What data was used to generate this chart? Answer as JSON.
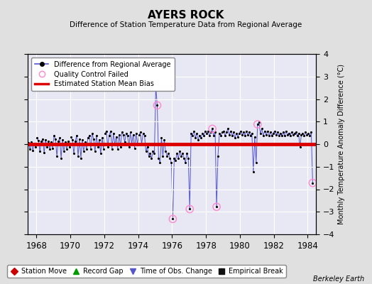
{
  "title": "AYERS ROCK",
  "subtitle": "Difference of Station Temperature Data from Regional Average",
  "ylabel_right": "Monthly Temperature Anomaly Difference (°C)",
  "xlim": [
    1967.5,
    1984.5
  ],
  "ylim": [
    -4,
    4
  ],
  "yticks": [
    -4,
    -3,
    -2,
    -1,
    0,
    1,
    2,
    3,
    4
  ],
  "xticks": [
    1968,
    1970,
    1972,
    1974,
    1976,
    1978,
    1980,
    1982,
    1984
  ],
  "bias": 0.0,
  "background_color": "#e0e0e0",
  "plot_bg_color": "#e8e8f5",
  "line_color": "#5555cc",
  "dot_color": "#000000",
  "bias_color": "#dd0000",
  "qc_color": "#ff88cc",
  "watermark": "Berkeley Earth",
  "time_series": [
    [
      1967.042,
      0.22
    ],
    [
      1967.125,
      0.08
    ],
    [
      1967.208,
      -0.12
    ],
    [
      1967.292,
      0.18
    ],
    [
      1967.375,
      0.1
    ],
    [
      1967.458,
      -0.18
    ],
    [
      1967.542,
      0.05
    ],
    [
      1967.625,
      -0.22
    ],
    [
      1967.708,
      0.08
    ],
    [
      1967.792,
      -0.28
    ],
    [
      1967.875,
      0.04
    ],
    [
      1967.958,
      -0.14
    ],
    [
      1968.042,
      0.28
    ],
    [
      1968.125,
      0.16
    ],
    [
      1968.208,
      -0.32
    ],
    [
      1968.292,
      0.12
    ],
    [
      1968.375,
      0.22
    ],
    [
      1968.458,
      -0.38
    ],
    [
      1968.542,
      0.18
    ],
    [
      1968.625,
      -0.12
    ],
    [
      1968.708,
      0.14
    ],
    [
      1968.792,
      -0.22
    ],
    [
      1968.875,
      0.08
    ],
    [
      1968.958,
      -0.18
    ],
    [
      1969.042,
      0.38
    ],
    [
      1969.125,
      0.22
    ],
    [
      1969.208,
      -0.52
    ],
    [
      1969.292,
      0.12
    ],
    [
      1969.375,
      0.28
    ],
    [
      1969.458,
      -0.62
    ],
    [
      1969.542,
      0.18
    ],
    [
      1969.625,
      -0.32
    ],
    [
      1969.708,
      0.08
    ],
    [
      1969.792,
      -0.22
    ],
    [
      1969.875,
      0.12
    ],
    [
      1969.958,
      -0.12
    ],
    [
      1970.042,
      0.32
    ],
    [
      1970.125,
      0.18
    ],
    [
      1970.208,
      -0.42
    ],
    [
      1970.292,
      0.12
    ],
    [
      1970.375,
      0.38
    ],
    [
      1970.458,
      -0.52
    ],
    [
      1970.542,
      0.22
    ],
    [
      1970.625,
      -0.62
    ],
    [
      1970.708,
      0.18
    ],
    [
      1970.792,
      -0.32
    ],
    [
      1970.875,
      0.08
    ],
    [
      1970.958,
      -0.22
    ],
    [
      1971.042,
      0.28
    ],
    [
      1971.125,
      0.38
    ],
    [
      1971.208,
      -0.22
    ],
    [
      1971.292,
      0.48
    ],
    [
      1971.375,
      0.22
    ],
    [
      1971.458,
      -0.32
    ],
    [
      1971.542,
      0.38
    ],
    [
      1971.625,
      -0.12
    ],
    [
      1971.708,
      0.18
    ],
    [
      1971.792,
      -0.42
    ],
    [
      1971.875,
      0.28
    ],
    [
      1971.958,
      -0.22
    ],
    [
      1972.042,
      0.48
    ],
    [
      1972.125,
      0.58
    ],
    [
      1972.208,
      -0.12
    ],
    [
      1972.292,
      0.38
    ],
    [
      1972.375,
      0.58
    ],
    [
      1972.458,
      -0.22
    ],
    [
      1972.542,
      0.48
    ],
    [
      1972.625,
      -0.02
    ],
    [
      1972.708,
      0.32
    ],
    [
      1972.792,
      -0.22
    ],
    [
      1972.875,
      0.42
    ],
    [
      1972.958,
      -0.12
    ],
    [
      1973.042,
      0.52
    ],
    [
      1973.125,
      0.42
    ],
    [
      1973.208,
      0.08
    ],
    [
      1973.292,
      0.48
    ],
    [
      1973.375,
      0.38
    ],
    [
      1973.458,
      -0.12
    ],
    [
      1973.542,
      0.52
    ],
    [
      1973.625,
      0.02
    ],
    [
      1973.708,
      0.42
    ],
    [
      1973.792,
      -0.18
    ],
    [
      1973.875,
      0.48
    ],
    [
      1973.958,
      -0.02
    ],
    [
      1974.042,
      0.42
    ],
    [
      1974.125,
      0.52
    ],
    [
      1974.208,
      0.02
    ],
    [
      1974.292,
      0.48
    ],
    [
      1974.375,
      0.38
    ],
    [
      1974.458,
      -0.32
    ],
    [
      1974.542,
      -0.12
    ],
    [
      1974.625,
      -0.52
    ],
    [
      1974.708,
      -0.42
    ],
    [
      1974.792,
      -0.62
    ],
    [
      1974.875,
      -0.32
    ],
    [
      1974.958,
      -0.42
    ],
    [
      1975.042,
      2.55
    ],
    [
      1975.125,
      1.72
    ],
    [
      1975.208,
      -0.62
    ],
    [
      1975.292,
      -0.82
    ],
    [
      1975.375,
      0.28
    ],
    [
      1975.458,
      -0.52
    ],
    [
      1975.542,
      0.18
    ],
    [
      1975.625,
      -0.32
    ],
    [
      1975.708,
      -0.52
    ],
    [
      1975.792,
      -0.42
    ],
    [
      1975.875,
      -0.62
    ],
    [
      1975.958,
      -0.82
    ],
    [
      1976.042,
      -3.32
    ],
    [
      1976.125,
      -0.62
    ],
    [
      1976.208,
      -0.72
    ],
    [
      1976.292,
      -0.42
    ],
    [
      1976.375,
      -0.62
    ],
    [
      1976.458,
      -0.32
    ],
    [
      1976.542,
      -0.52
    ],
    [
      1976.625,
      -0.42
    ],
    [
      1976.708,
      -0.62
    ],
    [
      1976.792,
      -0.82
    ],
    [
      1976.875,
      -0.42
    ],
    [
      1976.958,
      -0.62
    ],
    [
      1977.042,
      -2.88
    ],
    [
      1977.125,
      0.48
    ],
    [
      1977.208,
      0.38
    ],
    [
      1977.292,
      0.58
    ],
    [
      1977.375,
      0.28
    ],
    [
      1977.458,
      0.48
    ],
    [
      1977.542,
      0.18
    ],
    [
      1977.625,
      0.38
    ],
    [
      1977.708,
      0.28
    ],
    [
      1977.792,
      0.48
    ],
    [
      1977.875,
      0.38
    ],
    [
      1977.958,
      0.58
    ],
    [
      1978.042,
      0.48
    ],
    [
      1978.125,
      0.58
    ],
    [
      1978.208,
      0.38
    ],
    [
      1978.292,
      0.52
    ],
    [
      1978.375,
      0.68
    ],
    [
      1978.458,
      0.38
    ],
    [
      1978.542,
      0.52
    ],
    [
      1978.625,
      -2.78
    ],
    [
      1978.708,
      -0.52
    ],
    [
      1978.792,
      0.48
    ],
    [
      1978.875,
      0.38
    ],
    [
      1978.958,
      0.52
    ],
    [
      1979.042,
      0.58
    ],
    [
      1979.125,
      0.38
    ],
    [
      1979.208,
      0.52
    ],
    [
      1979.292,
      0.68
    ],
    [
      1979.375,
      0.42
    ],
    [
      1979.458,
      0.58
    ],
    [
      1979.542,
      0.38
    ],
    [
      1979.625,
      0.52
    ],
    [
      1979.708,
      0.28
    ],
    [
      1979.792,
      0.48
    ],
    [
      1979.875,
      0.32
    ],
    [
      1979.958,
      0.48
    ],
    [
      1980.042,
      0.58
    ],
    [
      1980.125,
      0.42
    ],
    [
      1980.208,
      0.52
    ],
    [
      1980.292,
      0.38
    ],
    [
      1980.375,
      0.58
    ],
    [
      1980.458,
      0.42
    ],
    [
      1980.542,
      0.52
    ],
    [
      1980.625,
      0.38
    ],
    [
      1980.708,
      0.48
    ],
    [
      1980.792,
      -1.22
    ],
    [
      1980.875,
      0.32
    ],
    [
      1980.958,
      -0.82
    ],
    [
      1981.042,
      0.88
    ],
    [
      1981.125,
      0.98
    ],
    [
      1981.208,
      0.48
    ],
    [
      1981.292,
      0.68
    ],
    [
      1981.375,
      0.38
    ],
    [
      1981.458,
      0.58
    ],
    [
      1981.542,
      0.42
    ],
    [
      1981.625,
      0.58
    ],
    [
      1981.708,
      0.38
    ],
    [
      1981.792,
      0.52
    ],
    [
      1981.875,
      0.38
    ],
    [
      1981.958,
      0.48
    ],
    [
      1982.042,
      0.58
    ],
    [
      1982.125,
      0.42
    ],
    [
      1982.208,
      0.52
    ],
    [
      1982.292,
      0.38
    ],
    [
      1982.375,
      0.48
    ],
    [
      1982.458,
      0.38
    ],
    [
      1982.542,
      0.52
    ],
    [
      1982.625,
      0.38
    ],
    [
      1982.708,
      0.58
    ],
    [
      1982.792,
      0.42
    ],
    [
      1982.875,
      0.48
    ],
    [
      1982.958,
      0.38
    ],
    [
      1983.042,
      0.52
    ],
    [
      1983.125,
      0.42
    ],
    [
      1983.208,
      0.48
    ],
    [
      1983.292,
      0.52
    ],
    [
      1983.375,
      0.38
    ],
    [
      1983.458,
      0.48
    ],
    [
      1983.542,
      -0.12
    ],
    [
      1983.625,
      0.42
    ],
    [
      1983.708,
      0.48
    ],
    [
      1983.792,
      0.38
    ],
    [
      1983.875,
      0.52
    ],
    [
      1983.958,
      0.42
    ],
    [
      1984.042,
      0.48
    ],
    [
      1984.125,
      0.38
    ],
    [
      1984.208,
      0.52
    ],
    [
      1984.292,
      -1.72
    ]
  ],
  "qc_failed_points": [
    [
      1975.042,
      2.55
    ],
    [
      1975.125,
      1.72
    ],
    [
      1976.042,
      -3.32
    ],
    [
      1977.042,
      -2.88
    ],
    [
      1978.375,
      0.68
    ],
    [
      1978.625,
      -2.78
    ],
    [
      1981.042,
      0.88
    ],
    [
      1984.292,
      -1.72
    ]
  ],
  "legend1": [
    {
      "label": "Difference from Regional Average",
      "type": "line_dot"
    },
    {
      "label": "Quality Control Failed",
      "type": "qc"
    },
    {
      "label": "Estimated Station Mean Bias",
      "type": "bias"
    }
  ],
  "legend2": [
    {
      "label": "Station Move",
      "color": "#cc0000",
      "marker": "D"
    },
    {
      "label": "Record Gap",
      "color": "#009900",
      "marker": "^"
    },
    {
      "label": "Time of Obs. Change",
      "color": "#5555cc",
      "marker": "v"
    },
    {
      "label": "Empirical Break",
      "color": "#111111",
      "marker": "s"
    }
  ]
}
